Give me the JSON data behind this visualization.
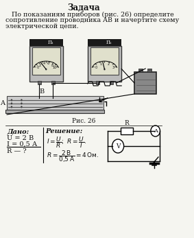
{
  "title": "Задача",
  "prob_line1": "   По показаниям приборов (рис. 26) определите",
  "prob_line2": "сопротивление проводника AB и начертите схему",
  "prob_line3": "электрической цепи.",
  "fig_caption": "Рис. 26",
  "given_title": "Дано:",
  "given_u": "U = 2 В",
  "given_i": "I = 0,5 А",
  "given_r": "R — ?",
  "sol_title": "Решение:",
  "bg_color": "#f5f5f0",
  "text_color": "#111111",
  "meter_gray": "#aaaaaa",
  "meter_face": "#d8d8c0",
  "bat_gray": "#888888"
}
